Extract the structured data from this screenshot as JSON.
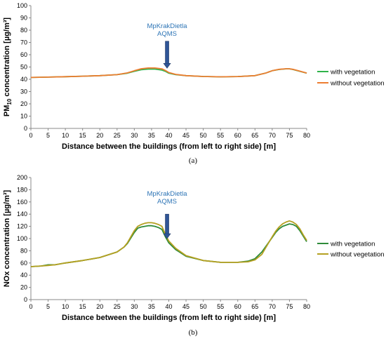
{
  "chart_data": [
    {
      "type": "line",
      "caption": "(a)",
      "xlabel": "Distance between the buildings (from left to right side) [m]",
      "ylabel_main": "PM",
      "ylabel_sub": "10",
      "ylabel_rest": " concentration [µg/m³]",
      "xlim": [
        0,
        80
      ],
      "ylim": [
        0,
        100
      ],
      "xticks": [
        0,
        5,
        10,
        15,
        20,
        25,
        30,
        35,
        40,
        45,
        50,
        55,
        60,
        65,
        70,
        75,
        80
      ],
      "yticks": [
        0,
        10,
        20,
        30,
        40,
        50,
        60,
        70,
        80,
        90,
        100
      ],
      "grid": false,
      "legend_position": "right",
      "annotation": {
        "lines": [
          "MpKrakDietla",
          "AQMS"
        ],
        "x": 39.5,
        "arrow_from_y": 71,
        "arrow_to_y": 49,
        "color": "#2e75b6"
      },
      "series": [
        {
          "name": "with vegetation",
          "color": "#2fb34a",
          "x": [
            0,
            5,
            10,
            15,
            20,
            25,
            28,
            30,
            32,
            34,
            36,
            38,
            39,
            40,
            42,
            45,
            50,
            55,
            60,
            65,
            68,
            70,
            72,
            74,
            75,
            76,
            78,
            80
          ],
          "y": [
            41.5,
            41.8,
            42.1,
            42.5,
            43.0,
            43.8,
            45.0,
            46.5,
            47.8,
            48.3,
            48.3,
            47.5,
            46.5,
            45.0,
            43.8,
            43.0,
            42.3,
            42.0,
            42.2,
            43.0,
            45.0,
            47.0,
            48.0,
            48.5,
            48.5,
            48.0,
            46.5,
            45.0
          ]
        },
        {
          "name": "without vegetation",
          "color": "#ed7d31",
          "x": [
            0,
            5,
            10,
            15,
            20,
            25,
            28,
            30,
            32,
            34,
            36,
            38,
            39,
            40,
            42,
            45,
            50,
            55,
            60,
            65,
            68,
            70,
            72,
            74,
            75,
            76,
            78,
            80
          ],
          "y": [
            41.5,
            41.8,
            42.1,
            42.5,
            43.0,
            43.8,
            45.2,
            47.0,
            48.6,
            49.2,
            49.2,
            48.5,
            47.2,
            45.5,
            44.0,
            43.0,
            42.3,
            42.0,
            42.2,
            43.0,
            45.0,
            47.0,
            48.1,
            48.6,
            48.6,
            48.1,
            46.6,
            45.1
          ]
        }
      ]
    },
    {
      "type": "line",
      "caption": "(b)",
      "xlabel": "Distance between the buildings (from left to right side) [m]",
      "ylabel_main": "NOx concentration [µg/m³]",
      "xlim": [
        0,
        80
      ],
      "ylim": [
        0,
        200
      ],
      "xticks": [
        0,
        5,
        10,
        15,
        20,
        25,
        30,
        35,
        40,
        45,
        50,
        55,
        60,
        65,
        70,
        75,
        80
      ],
      "yticks": [
        0,
        20,
        40,
        60,
        80,
        100,
        120,
        140,
        160,
        180,
        200
      ],
      "grid": false,
      "legend_position": "right",
      "annotation": {
        "lines": [
          "MpKrakDietla",
          "AQMS"
        ],
        "x": 39.5,
        "arrow_from_y": 140,
        "arrow_to_y": 100,
        "color": "#2e75b6"
      },
      "series": [
        {
          "name": "with vegetation",
          "color": "#2e8b3a",
          "x": [
            0,
            3,
            5,
            7,
            10,
            15,
            20,
            25,
            27,
            28,
            30,
            31,
            32,
            33,
            34,
            35,
            36,
            37,
            38,
            39,
            40,
            42,
            45,
            50,
            55,
            60,
            63,
            65,
            67,
            68,
            70,
            71,
            72,
            73,
            74,
            75,
            76,
            77,
            78,
            79,
            80
          ],
          "y": [
            54,
            55,
            57,
            57,
            60,
            64,
            69,
            78,
            86,
            92,
            110,
            117,
            119,
            120,
            121,
            121,
            120,
            118,
            115,
            103,
            93,
            82,
            71,
            64,
            61,
            61,
            63,
            67,
            78,
            86,
            102,
            110,
            116,
            120,
            122,
            124,
            123,
            120,
            113,
            104,
            95
          ]
        },
        {
          "name": "without vegetation",
          "color": "#b5a021",
          "x": [
            0,
            3,
            5,
            7,
            10,
            15,
            20,
            25,
            27,
            28,
            30,
            31,
            32,
            33,
            34,
            35,
            36,
            37,
            38,
            39,
            40,
            42,
            45,
            50,
            55,
            60,
            63,
            65,
            67,
            68,
            70,
            71,
            72,
            73,
            74,
            75,
            76,
            77,
            78,
            79,
            80
          ],
          "y": [
            54,
            55,
            56,
            57,
            60,
            64,
            69,
            78,
            86,
            93,
            113,
            120,
            123,
            125,
            126,
            126,
            125,
            123,
            120,
            107,
            96,
            84,
            72,
            64,
            61,
            61,
            62,
            65,
            74,
            84,
            103,
            112,
            119,
            124,
            127,
            129,
            127,
            123,
            116,
            106,
            97
          ]
        }
      ]
    }
  ]
}
